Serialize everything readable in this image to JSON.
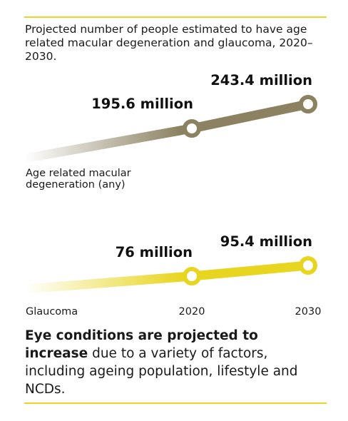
{
  "chart_data": {
    "type": "line",
    "subtitle": "Projected number of people estimated to have age related macular degeneration and glaucoma, 2020–2030.",
    "x": [
      "2020",
      "2030"
    ],
    "series": [
      {
        "name": "Age related macular degeneration (any)",
        "values": [
          195.6,
          243.4
        ],
        "labels": [
          "195.6 million",
          "243.4 million"
        ],
        "color": "#8c8262"
      },
      {
        "name": "Glaucoma",
        "values": [
          76,
          95.4
        ],
        "labels": [
          "76 million",
          "95.4 million"
        ],
        "color": "#e8d520"
      }
    ],
    "colors": {
      "accent_rule": "#e6d62a"
    }
  },
  "footer": {
    "bold": "Eye conditions are projected to increase",
    "rest": " due to a variety of factors, including ageing population, lifestyle and NCDs."
  }
}
